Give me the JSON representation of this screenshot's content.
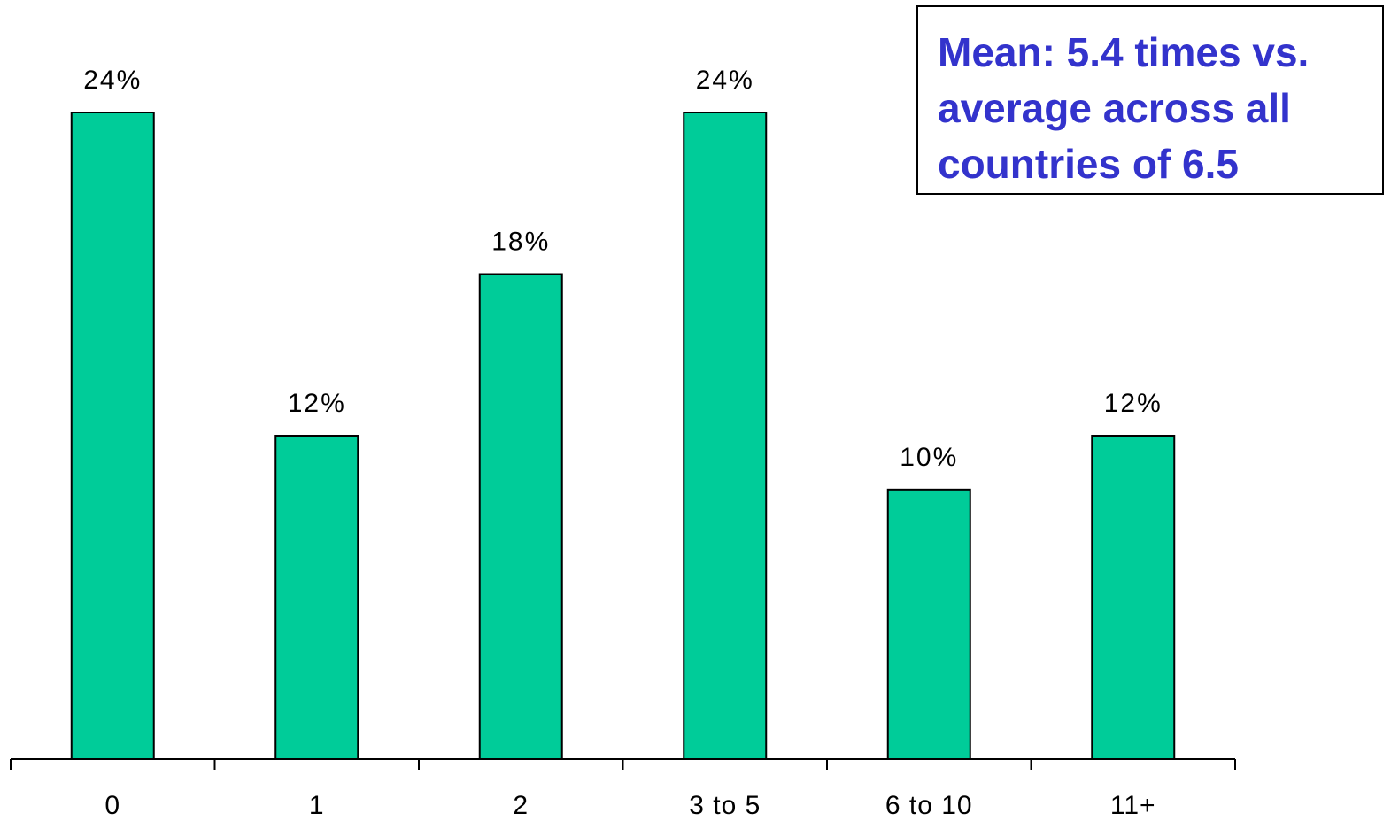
{
  "chart_data": {
    "type": "bar",
    "categories": [
      "0",
      "1",
      "2",
      "3 to 5",
      "6 to 10",
      "11+"
    ],
    "values": [
      24,
      12,
      18,
      24,
      10,
      12
    ],
    "data_labels": [
      "24%",
      "12%",
      "18%",
      "24%",
      "10%",
      "12%"
    ],
    "title": "",
    "xlabel": "",
    "ylabel": "",
    "ylim": [
      0,
      24
    ],
    "grid": false,
    "bar_color": "#00CC99",
    "annotation": {
      "text": "Mean: 5.4 times vs. average across all countries of 6.5",
      "lines": [
        "Mean: 5.4 times vs.",
        "average across all",
        "countries of 6.5"
      ],
      "color": "#3333CC",
      "placement": "top-right"
    }
  }
}
